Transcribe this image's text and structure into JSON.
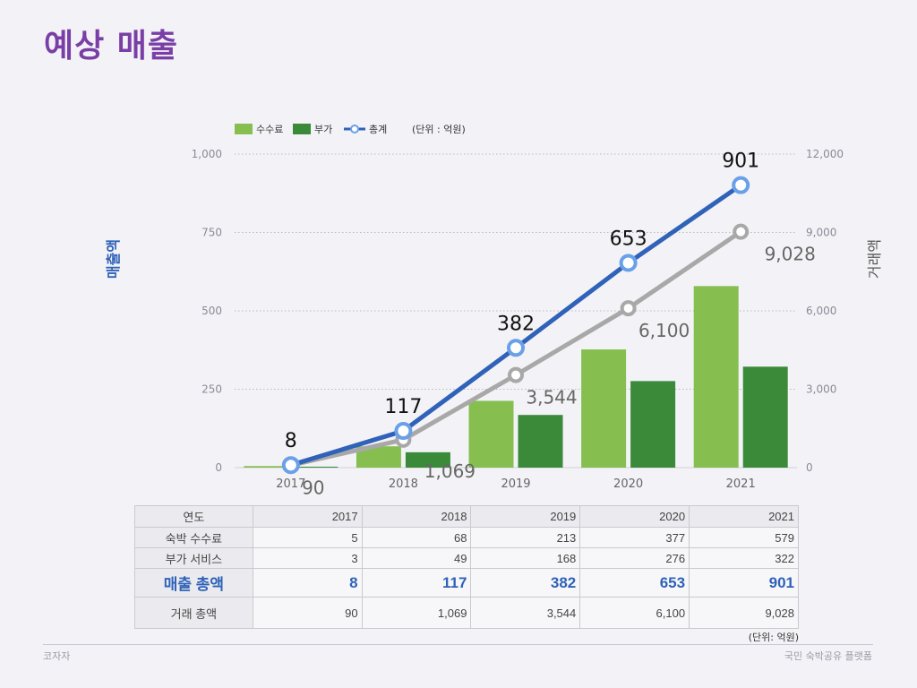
{
  "title": "예상 매출",
  "chart_data": {
    "type": "bar",
    "categories": [
      "2017",
      "2018",
      "2019",
      "2020",
      "2021"
    ],
    "series": [
      {
        "name": "수수료",
        "type": "bar",
        "axis": "left",
        "color": "#86bf50",
        "values": [
          5,
          68,
          213,
          377,
          579
        ]
      },
      {
        "name": "부가",
        "type": "bar",
        "axis": "left",
        "color": "#3a8a3a",
        "values": [
          3,
          49,
          168,
          276,
          322
        ]
      },
      {
        "name": "총계",
        "type": "line",
        "axis": "left",
        "color": "#2f62b8",
        "marker_color": "#6aa0e8",
        "values": [
          8,
          117,
          382,
          653,
          901
        ]
      },
      {
        "type": "line",
        "axis": "right",
        "color": "#a8a8a8",
        "values": [
          90,
          1069,
          3544,
          6100,
          9028
        ]
      }
    ],
    "legend_unit": "(단위 : 억원)",
    "ylabel": "매출액",
    "y2label": "거래액",
    "ylim": [
      0,
      1000
    ],
    "y2lim": [
      0,
      12000
    ],
    "yticks": [
      "0",
      "250",
      "500",
      "750",
      "1,000"
    ],
    "y2ticks": [
      "0",
      "3,000",
      "6,000",
      "9,000",
      "12,000"
    ],
    "total_labels": [
      "8",
      "117",
      "382",
      "653",
      "901"
    ],
    "trans_labels": [
      "90",
      "1,069",
      "3,544",
      "6,100",
      "9,028"
    ],
    "grid": true,
    "legend_position": "top"
  },
  "table": {
    "header_label": "연도",
    "years": [
      "2017",
      "2018",
      "2019",
      "2020",
      "2021"
    ],
    "rows": [
      {
        "label": "숙박 수수료",
        "values": [
          "5",
          "68",
          "213",
          "377",
          "579"
        ]
      },
      {
        "label": "부가 서비스",
        "values": [
          "3",
          "49",
          "168",
          "276",
          "322"
        ]
      },
      {
        "label": "매출 총액",
        "values": [
          "8",
          "117",
          "382",
          "653",
          "901"
        ]
      },
      {
        "label": "거래 총액",
        "values": [
          "90",
          "1,069",
          "3,544",
          "6,100",
          "9,028"
        ]
      }
    ],
    "unit_note": "(단위: 억원)"
  },
  "footer": {
    "left": "코자자",
    "right": "국민 숙박공유 플랫폼"
  }
}
